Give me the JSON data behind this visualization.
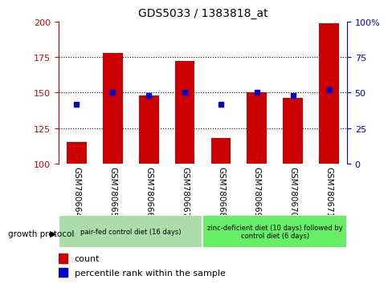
{
  "title": "GDS5033 / 1383818_at",
  "samples": [
    "GSM780664",
    "GSM780665",
    "GSM780666",
    "GSM780667",
    "GSM780668",
    "GSM780669",
    "GSM780670",
    "GSM780671"
  ],
  "counts": [
    115,
    178,
    148,
    172,
    118,
    150,
    146,
    199
  ],
  "percentiles": [
    42,
    50,
    48,
    50,
    42,
    50,
    48,
    52
  ],
  "bar_color": "#cc0000",
  "dot_color": "#0000cc",
  "ylim_left": [
    100,
    200
  ],
  "ylim_right": [
    0,
    100
  ],
  "yticks_left": [
    100,
    125,
    150,
    175,
    200
  ],
  "yticks_right": [
    0,
    25,
    50,
    75,
    100
  ],
  "yticklabels_right": [
    "0",
    "25",
    "50",
    "75",
    "100%"
  ],
  "group1_label": "pair-fed control diet (16 days)",
  "group1_samples": [
    0,
    1,
    2,
    3
  ],
  "group1_color": "#aaddaa",
  "group2_label": "zinc-deficient diet (10 days) followed by\ncontrol diet (6 days)",
  "group2_samples": [
    4,
    5,
    6,
    7
  ],
  "group2_color": "#66ee66",
  "group_label_text": "growth protocol",
  "legend_count_label": "count",
  "legend_pct_label": "percentile rank within the sample",
  "bar_width": 0.55,
  "bar_bottom": 100,
  "sample_box_color": "#cccccc",
  "sample_box_edgecolor": "white"
}
